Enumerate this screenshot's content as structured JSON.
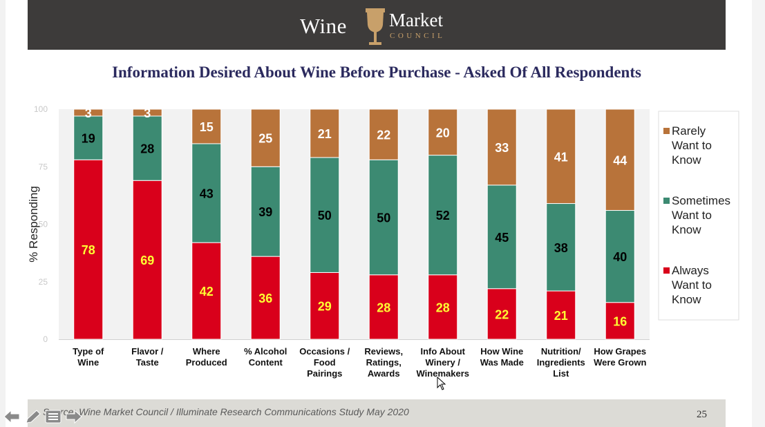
{
  "header": {
    "logo_word_left": "Wine",
    "logo_word_right": "Market",
    "logo_sub": "COUNCIL"
  },
  "title": "Information Desired About Wine Before Purchase - Asked Of All Respondents",
  "footer": {
    "source": "Source: Wine Market Council / Illuminate Research Communications Study May 2020",
    "page_number": "25"
  },
  "colors": {
    "header_bg": "#3d3b3a",
    "title": "#2b2a5e",
    "always": "#d9001b",
    "sometimes": "#3c8a72",
    "rarely": "#b8733a",
    "always_label": "#ffff33",
    "sometimes_label": "#000000",
    "rarely_label": "#ffffff"
  },
  "nav_icons": [
    "back-arrow-icon",
    "pen-icon",
    "menu-icon",
    "forward-arrow-icon"
  ],
  "chart_data": {
    "type": "bar",
    "stacked": true,
    "ylabel": "% Responding",
    "xlabel": "",
    "ylim": [
      0,
      100
    ],
    "yticks": [
      0,
      25,
      50,
      75,
      100
    ],
    "grid": false,
    "legend_position": "right",
    "categories": [
      "Type of Wine",
      "Flavor / Taste",
      "Where Produced",
      "% Alcohol Content",
      "Occasions / Food Pairings",
      "Reviews, Ratings, Awards",
      "Info About Winery / Winemakers",
      "How Wine Was Made",
      "Nutrition/ Ingredients List",
      "How Grapes Were Grown"
    ],
    "category_lines": [
      [
        "Type of",
        "Wine"
      ],
      [
        "Flavor /",
        "Taste"
      ],
      [
        "Where",
        "Produced"
      ],
      [
        "% Alcohol",
        "Content"
      ],
      [
        "Occasions /",
        "Food",
        "Pairings"
      ],
      [
        "Reviews,",
        "Ratings,",
        "Awards"
      ],
      [
        "Info About",
        "Winery /",
        "Winemakers"
      ],
      [
        "How Wine",
        "Was Made"
      ],
      [
        "Nutrition/",
        "Ingredients",
        "List"
      ],
      [
        "How Grapes",
        "Were Grown"
      ]
    ],
    "series": [
      {
        "name": "Always Want to Know",
        "legend_lines": [
          "Always",
          "Want to",
          "Know"
        ],
        "color": "#d9001b",
        "values": [
          78,
          69,
          42,
          36,
          29,
          28,
          28,
          22,
          21,
          16
        ]
      },
      {
        "name": "Sometimes Want to Know",
        "legend_lines": [
          "Sometimes",
          "Want to",
          "Know"
        ],
        "color": "#3c8a72",
        "values": [
          19,
          28,
          43,
          39,
          50,
          50,
          52,
          45,
          38,
          40
        ]
      },
      {
        "name": "Rarely Want to Know",
        "legend_lines": [
          "Rarely",
          "Want to",
          "Know"
        ],
        "color": "#b8733a",
        "values": [
          3,
          3,
          15,
          25,
          21,
          22,
          20,
          33,
          41,
          44
        ]
      }
    ]
  }
}
